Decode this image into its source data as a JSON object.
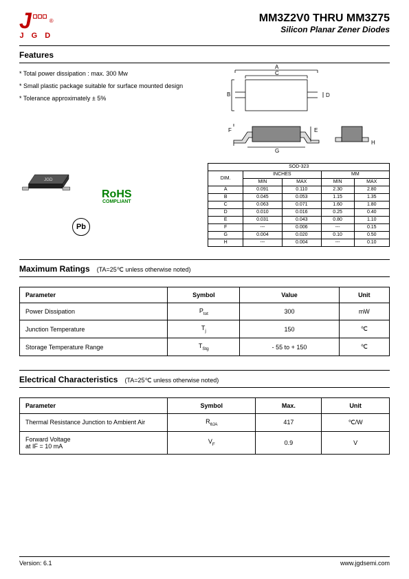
{
  "header": {
    "logo_letters": "J G D",
    "title": "MM3Z2V0 THRU MM3Z75",
    "subtitle": "Silicon Planar Zener Diodes"
  },
  "features": {
    "heading": "Features",
    "items": [
      "* Total power dissipation : max. 300 Mw",
      "* Small plastic package suitable for surface mounted design",
      "* Tolerance approximately ± 5%"
    ]
  },
  "rohs": {
    "label": "RoHS",
    "sub": "COMPLIANT"
  },
  "pb_label": "Pb",
  "dim_table": {
    "title": "SOD-323",
    "unit_groups": [
      "INCHES",
      "MM"
    ],
    "subcols": [
      "MIN",
      "MAX",
      "MIN",
      "MAX"
    ],
    "dim_label": "DIM.",
    "rows": [
      {
        "dim": "A",
        "vals": [
          "0.091",
          "0.110",
          "2.30",
          "2.80"
        ]
      },
      {
        "dim": "B",
        "vals": [
          "0.045",
          "0.053",
          "1.15",
          "1.35"
        ]
      },
      {
        "dim": "C",
        "vals": [
          "0.063",
          "0.071",
          "1.60",
          "1.80"
        ]
      },
      {
        "dim": "D",
        "vals": [
          "0.010",
          "0.016",
          "0.25",
          "0.40"
        ]
      },
      {
        "dim": "E",
        "vals": [
          "0.031",
          "0.043",
          "0.80",
          "1.10"
        ]
      },
      {
        "dim": "F",
        "vals": [
          "---",
          "0.006",
          "---",
          "0.15"
        ]
      },
      {
        "dim": "G",
        "vals": [
          "0.004",
          "0.020",
          "0.10",
          "0.50"
        ]
      },
      {
        "dim": "H",
        "vals": [
          "---",
          "0.004",
          "---",
          "0.10"
        ]
      }
    ]
  },
  "package_diagram": {
    "labels": [
      "A",
      "B",
      "C",
      "D",
      "E",
      "F",
      "G",
      "H"
    ]
  },
  "max_ratings": {
    "heading": "Maximum Ratings",
    "note": "(TA=25℃ unless otherwise noted)",
    "columns": [
      "Parameter",
      "Symbol",
      "Value",
      "Unit"
    ],
    "rows": [
      {
        "param": "Power Dissipation",
        "sym": "P",
        "sub": "tot",
        "val": "300",
        "unit": "mW"
      },
      {
        "param": "Junction Temperature",
        "sym": "T",
        "sub": "j",
        "val": "150",
        "unit": "℃"
      },
      {
        "param": "Storage Temperature Range",
        "sym": "T",
        "sub": "Stg",
        "val": "- 55 to + 150",
        "unit": "℃"
      }
    ]
  },
  "elec_char": {
    "heading": "Electrical Characteristics",
    "note": "(TA=25℃ unless otherwise noted)",
    "columns": [
      "Parameter",
      "Symbol",
      "Max.",
      "Unit"
    ],
    "rows": [
      {
        "param": "Thermal Resistance Junction to Ambient Air",
        "sym": "R",
        "sub": "θJA",
        "val": "417",
        "unit": "℃/W"
      },
      {
        "param": "Forward Voltage\nat IF = 10 mA",
        "sym": "V",
        "sub": "F",
        "val": "0.9",
        "unit": "V"
      }
    ]
  },
  "footer": {
    "version": "Version: 6.1",
    "url": "www.jgdsemi.com"
  },
  "colors": {
    "brand_red": "#c00000",
    "rohs_green": "#008000",
    "text": "#000000"
  }
}
